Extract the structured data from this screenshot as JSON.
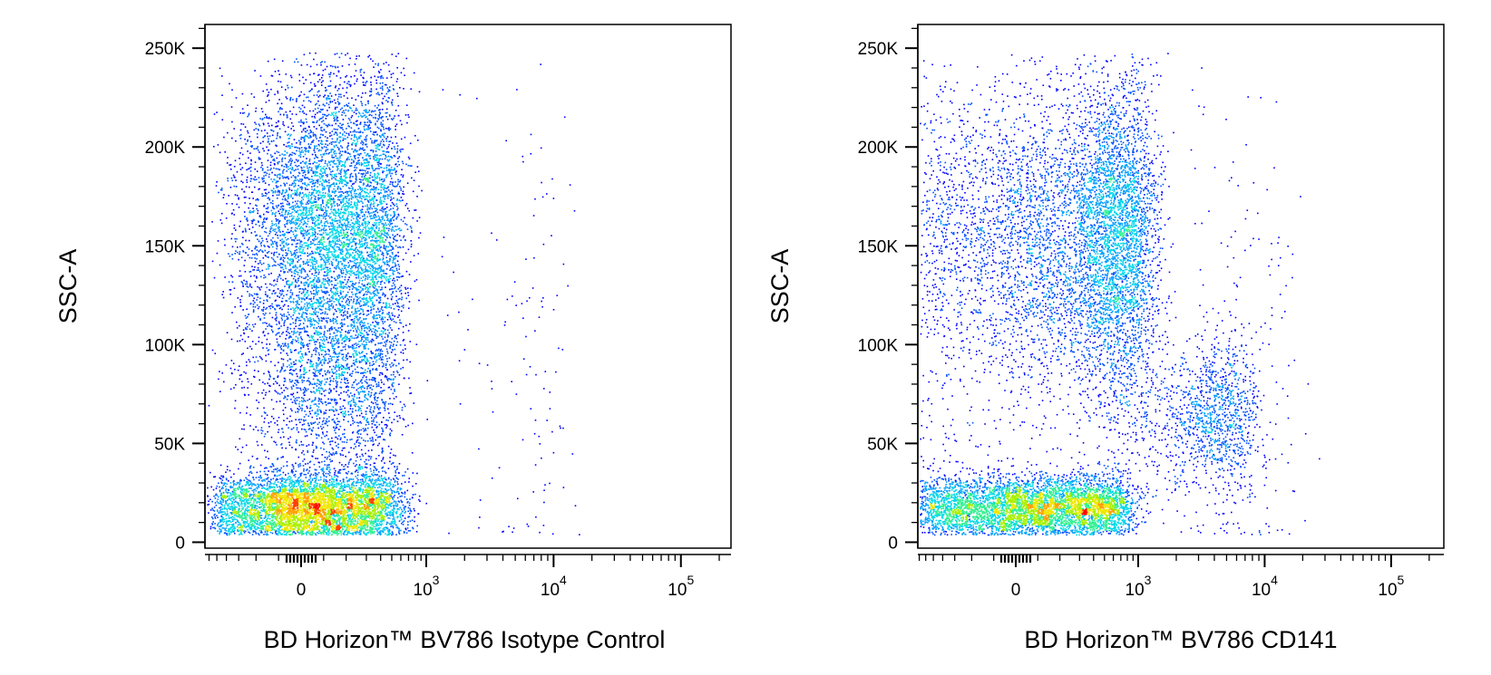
{
  "chart_data": [
    {
      "type": "scatter",
      "subtype": "flow-cytometry-density-dot-plot",
      "title": "",
      "xlabel": "BD Horizon™ BV786 Isotype Control",
      "ylabel": "SSC-A",
      "x_scale": "biexponential",
      "x_ticks": [
        {
          "value": 0,
          "label": "0",
          "exp": ""
        },
        {
          "value": 1000,
          "label": "10",
          "exp": "3"
        },
        {
          "value": 10000,
          "label": "10",
          "exp": "4"
        },
        {
          "value": 100000,
          "label": "10",
          "exp": "5"
        }
      ],
      "y_ticks": [
        {
          "value": 0,
          "label": "0"
        },
        {
          "value": 50000,
          "label": "50K"
        },
        {
          "value": 100000,
          "label": "100K"
        },
        {
          "value": 150000,
          "label": "150K"
        },
        {
          "value": 200000,
          "label": "200K"
        },
        {
          "value": 250000,
          "label": "250K"
        }
      ],
      "ylim": [
        -3000,
        262000
      ],
      "grid": false,
      "color_scale": [
        "#0000ff",
        "#00b4ff",
        "#00e6c8",
        "#96f000",
        "#ffe600",
        "#ff8c00",
        "#ff0000"
      ],
      "populations": [
        {
          "x_center": 50,
          "y_center": 18000,
          "x_spread": 250,
          "y_spread": 9000,
          "events": 5200,
          "peak_color": "red"
        },
        {
          "x_center": 150,
          "y_center": 160000,
          "x_spread": 220,
          "y_spread": 40000,
          "events": 6500,
          "peak_color": "yellow-green"
        },
        {
          "x_center": 130,
          "y_center": 80000,
          "x_spread": 200,
          "y_spread": 30000,
          "events": 1800,
          "peak_color": "cyan"
        },
        {
          "x_center": 1000,
          "y_center": 100000,
          "x_spread": 6000,
          "y_spread": 80000,
          "events": 250,
          "peak_color": "blue"
        }
      ]
    },
    {
      "type": "scatter",
      "subtype": "flow-cytometry-density-dot-plot",
      "title": "",
      "xlabel": "BD Horizon™ BV786 CD141",
      "ylabel": "SSC-A",
      "x_scale": "biexponential",
      "x_ticks": [
        {
          "value": 0,
          "label": "0",
          "exp": ""
        },
        {
          "value": 1000,
          "label": "10",
          "exp": "3"
        },
        {
          "value": 10000,
          "label": "10",
          "exp": "4"
        },
        {
          "value": 100000,
          "label": "10",
          "exp": "5"
        }
      ],
      "y_ticks": [
        {
          "value": 0,
          "label": "0"
        },
        {
          "value": 50000,
          "label": "50K"
        },
        {
          "value": 100000,
          "label": "100K"
        },
        {
          "value": 150000,
          "label": "150K"
        },
        {
          "value": 200000,
          "label": "200K"
        },
        {
          "value": 250000,
          "label": "250K"
        }
      ],
      "ylim": [
        -3000,
        262000
      ],
      "grid": false,
      "color_scale": [
        "#0000ff",
        "#00b4ff",
        "#00e6c8",
        "#96f000",
        "#ffe600",
        "#ff8c00",
        "#ff0000"
      ],
      "populations": [
        {
          "x_center": 80,
          "y_center": 18000,
          "x_spread": 350,
          "y_spread": 8000,
          "events": 5200,
          "peak_color": "red"
        },
        {
          "x_center": 380,
          "y_center": 155000,
          "x_spread": 450,
          "y_spread": 40000,
          "events": 6500,
          "peak_color": "yellow-green"
        },
        {
          "x_center": 3500,
          "y_center": 65000,
          "x_spread": 2500,
          "y_spread": 20000,
          "events": 1400,
          "peak_color": "cyan"
        },
        {
          "x_center": 2000,
          "y_center": 100000,
          "x_spread": 8000,
          "y_spread": 80000,
          "events": 300,
          "peak_color": "blue"
        }
      ]
    }
  ]
}
